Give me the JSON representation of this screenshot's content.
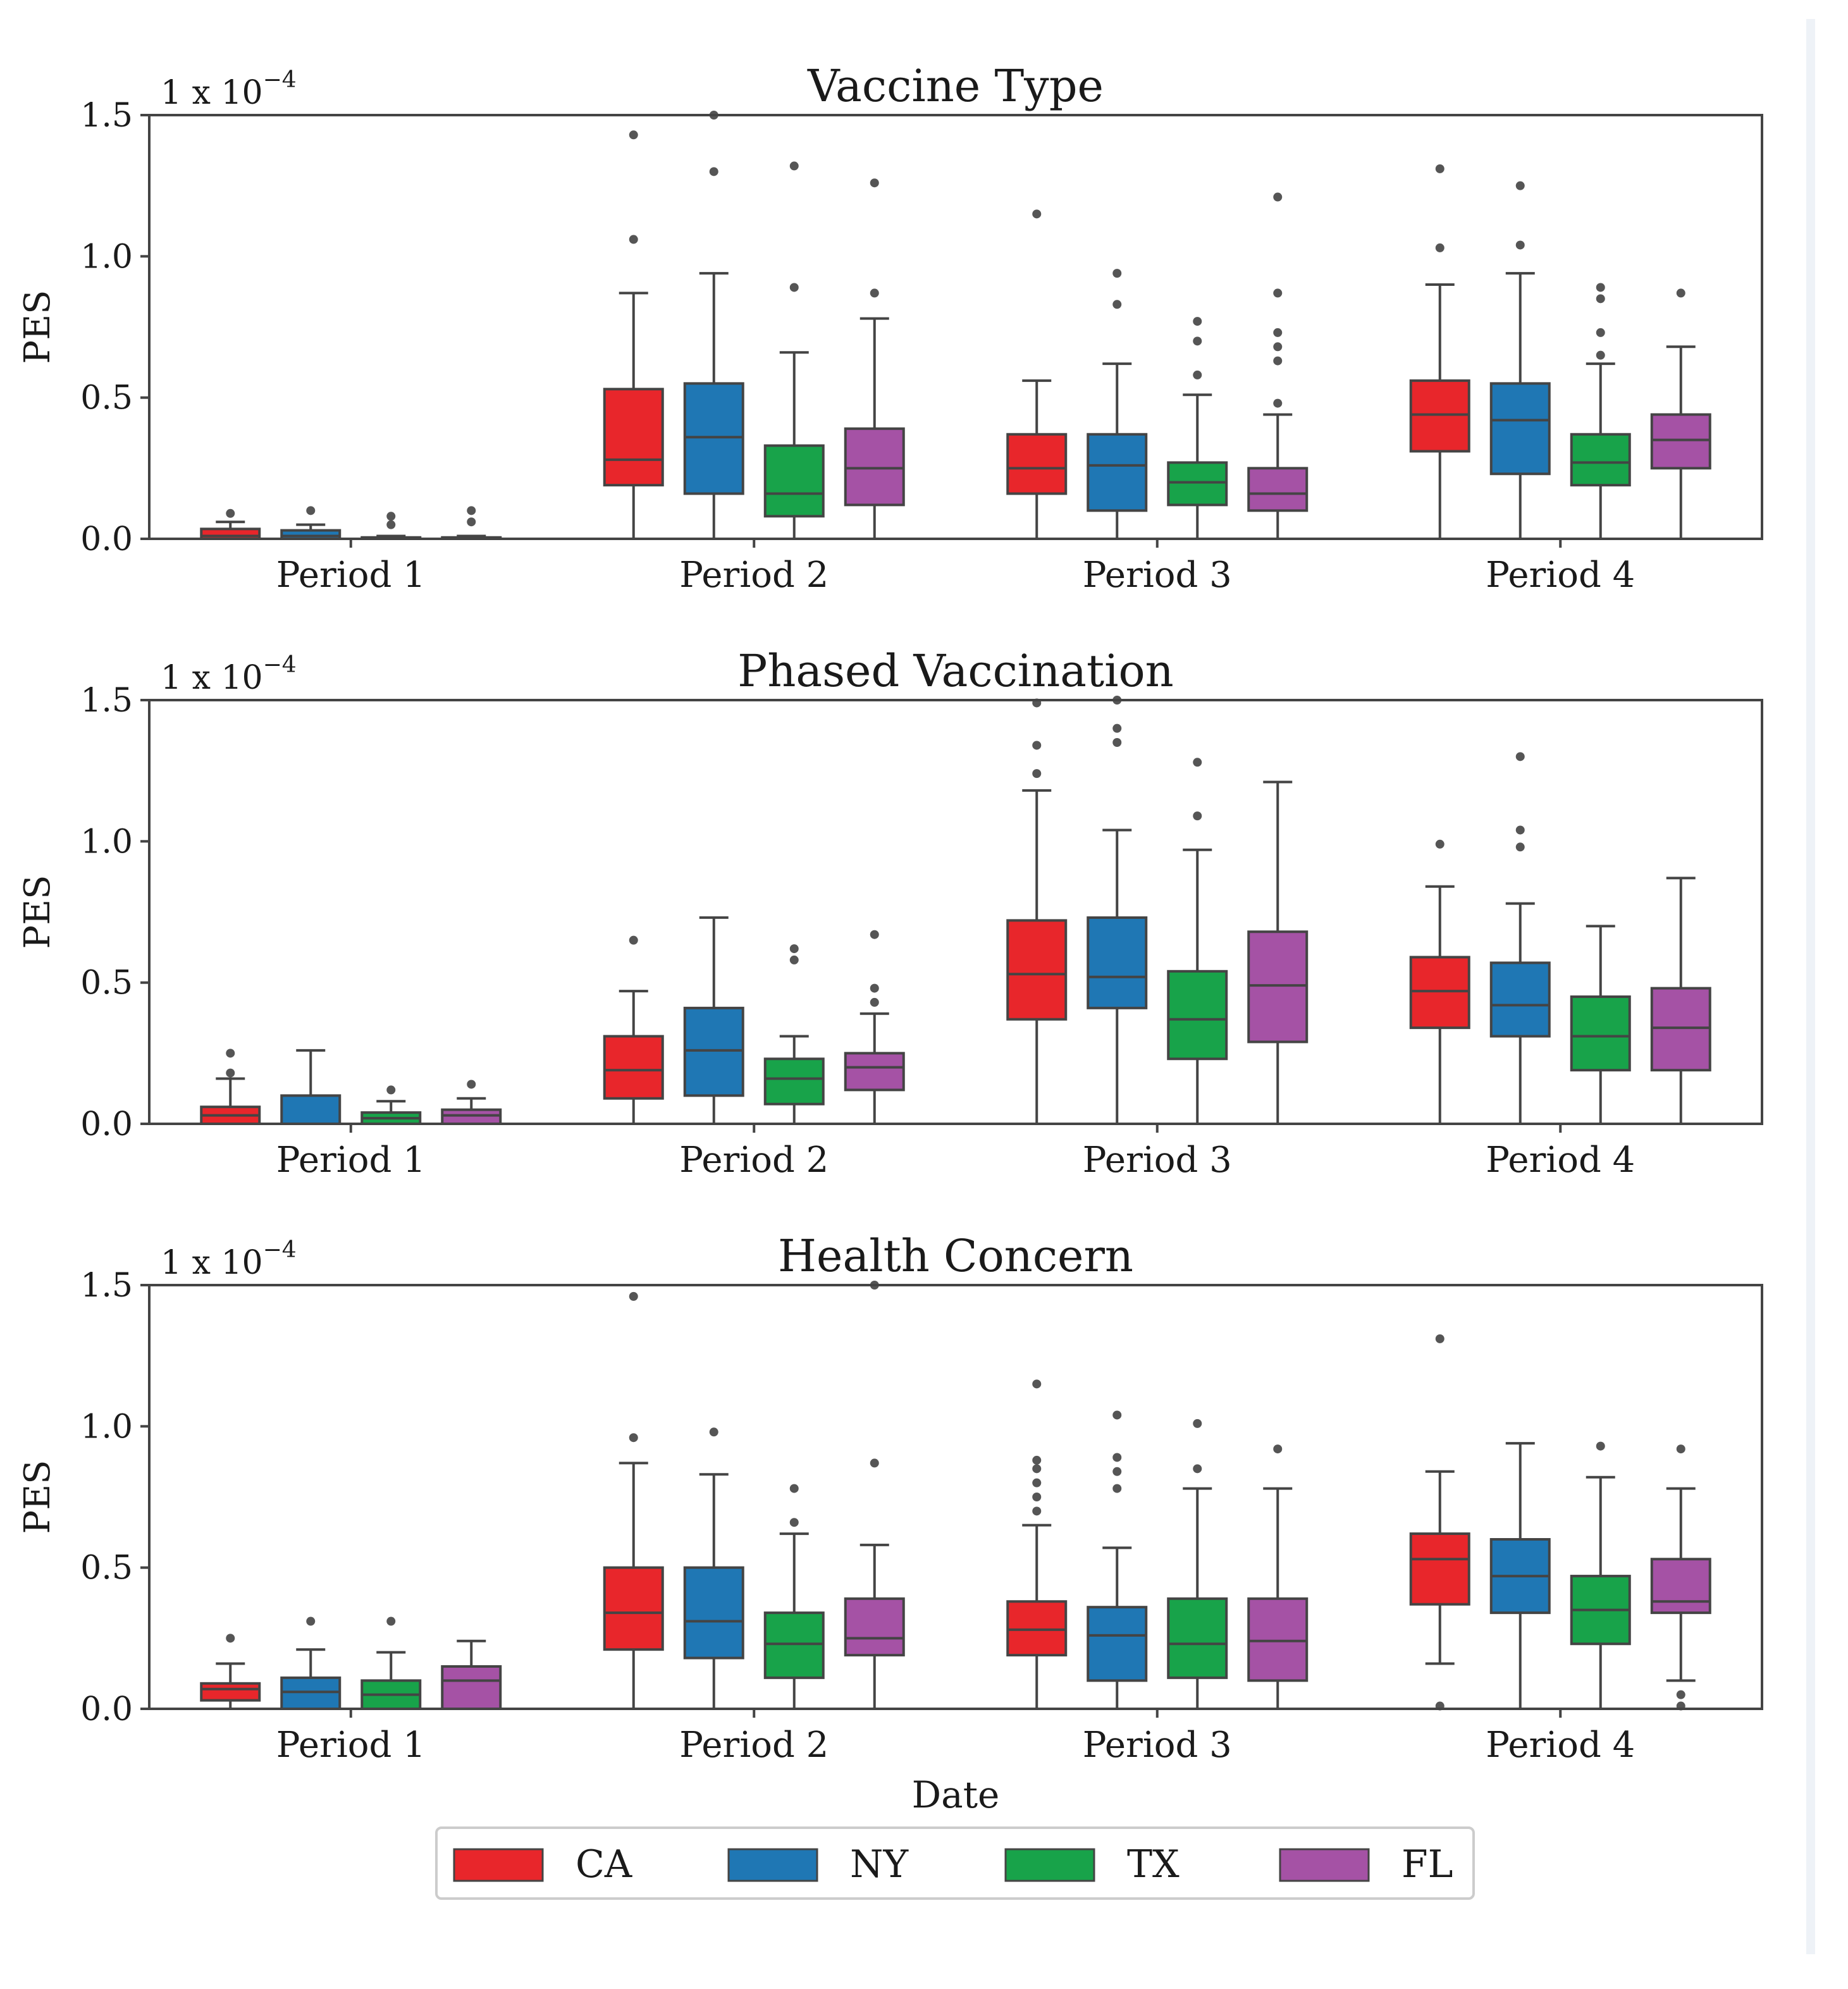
{
  "figure": {
    "xlabel": "Date",
    "legend_position": "bottom-center",
    "colors": {
      "CA": "#e8262b",
      "NY": "#1f77b4",
      "TX": "#18a34a",
      "FL": "#a552a5"
    }
  },
  "chart_data": [
    {
      "type": "box",
      "title": "Vaccine Type",
      "ylabel": "PES",
      "multiplier": "1 x 10",
      "multiplier_exp": "−4",
      "ylim": [
        0,
        1.5
      ],
      "yticks": [
        "0.0",
        "0.5",
        "1.0",
        "1.5"
      ],
      "categories": [
        "Period 1",
        "Period 2",
        "Period 3",
        "Period 4"
      ],
      "series": [
        {
          "name": "CA",
          "boxes": [
            {
              "q1": 0.0,
              "median": 0.01,
              "q3": 0.035,
              "whislo": 0.0,
              "whishi": 0.06,
              "fliers": [
                0.09
              ]
            },
            {
              "q1": 0.19,
              "median": 0.28,
              "q3": 0.53,
              "whislo": 0.0,
              "whishi": 0.87,
              "fliers": [
                1.06,
                1.43
              ]
            },
            {
              "q1": 0.16,
              "median": 0.25,
              "q3": 0.37,
              "whislo": 0.0,
              "whishi": 0.56,
              "fliers": [
                1.15
              ]
            },
            {
              "q1": 0.31,
              "median": 0.44,
              "q3": 0.56,
              "whislo": 0.0,
              "whishi": 0.9,
              "fliers": [
                1.03,
                1.31
              ]
            }
          ]
        },
        {
          "name": "NY",
          "boxes": [
            {
              "q1": 0.0,
              "median": 0.01,
              "q3": 0.03,
              "whislo": 0.0,
              "whishi": 0.05,
              "fliers": [
                0.1
              ]
            },
            {
              "q1": 0.16,
              "median": 0.36,
              "q3": 0.55,
              "whislo": 0.0,
              "whishi": 0.94,
              "fliers": [
                1.3,
                1.5
              ]
            },
            {
              "q1": 0.1,
              "median": 0.26,
              "q3": 0.37,
              "whislo": 0.0,
              "whishi": 0.62,
              "fliers": [
                0.83,
                0.94
              ]
            },
            {
              "q1": 0.23,
              "median": 0.42,
              "q3": 0.55,
              "whislo": 0.0,
              "whishi": 0.94,
              "fliers": [
                1.04,
                1.25
              ]
            }
          ]
        },
        {
          "name": "TX",
          "boxes": [
            {
              "q1": 0.0,
              "median": 0.0,
              "q3": 0.005,
              "whislo": 0.0,
              "whishi": 0.01,
              "fliers": [
                0.05,
                0.08
              ]
            },
            {
              "q1": 0.08,
              "median": 0.16,
              "q3": 0.33,
              "whislo": 0.0,
              "whishi": 0.66,
              "fliers": [
                0.89,
                1.32
              ]
            },
            {
              "q1": 0.12,
              "median": 0.2,
              "q3": 0.27,
              "whislo": 0.0,
              "whishi": 0.51,
              "fliers": [
                0.58,
                0.7,
                0.77
              ]
            },
            {
              "q1": 0.19,
              "median": 0.27,
              "q3": 0.37,
              "whislo": 0.0,
              "whishi": 0.62,
              "fliers": [
                0.65,
                0.73,
                0.85,
                0.89
              ]
            }
          ]
        },
        {
          "name": "FL",
          "boxes": [
            {
              "q1": 0.0,
              "median": 0.0,
              "q3": 0.005,
              "whislo": 0.0,
              "whishi": 0.01,
              "fliers": [
                0.06,
                0.1
              ]
            },
            {
              "q1": 0.12,
              "median": 0.25,
              "q3": 0.39,
              "whislo": 0.0,
              "whishi": 0.78,
              "fliers": [
                0.87,
                1.26
              ]
            },
            {
              "q1": 0.1,
              "median": 0.16,
              "q3": 0.25,
              "whislo": 0.0,
              "whishi": 0.44,
              "fliers": [
                0.48,
                0.63,
                0.68,
                0.73,
                0.87,
                1.21
              ]
            },
            {
              "q1": 0.25,
              "median": 0.35,
              "q3": 0.44,
              "whislo": 0.0,
              "whishi": 0.68,
              "fliers": [
                0.87
              ]
            }
          ]
        }
      ]
    },
    {
      "type": "box",
      "title": "Phased Vaccination",
      "ylabel": "PES",
      "multiplier": "1 x 10",
      "multiplier_exp": "−4",
      "ylim": [
        0,
        1.5
      ],
      "yticks": [
        "0.0",
        "0.5",
        "1.0",
        "1.5"
      ],
      "categories": [
        "Period 1",
        "Period 2",
        "Period 3",
        "Period 4"
      ],
      "series": [
        {
          "name": "CA",
          "boxes": [
            {
              "q1": 0.0,
              "median": 0.03,
              "q3": 0.06,
              "whislo": 0.0,
              "whishi": 0.16,
              "fliers": [
                0.18,
                0.25
              ]
            },
            {
              "q1": 0.09,
              "median": 0.19,
              "q3": 0.31,
              "whislo": 0.0,
              "whishi": 0.47,
              "fliers": [
                0.65
              ]
            },
            {
              "q1": 0.37,
              "median": 0.53,
              "q3": 0.72,
              "whislo": 0.0,
              "whishi": 1.18,
              "fliers": [
                1.24,
                1.34,
                1.49
              ]
            },
            {
              "q1": 0.34,
              "median": 0.47,
              "q3": 0.59,
              "whislo": 0.0,
              "whishi": 0.84,
              "fliers": [
                0.99
              ]
            }
          ]
        },
        {
          "name": "NY",
          "boxes": [
            {
              "q1": 0.0,
              "median": 0.0,
              "q3": 0.1,
              "whislo": 0.0,
              "whishi": 0.26,
              "fliers": []
            },
            {
              "q1": 0.1,
              "median": 0.26,
              "q3": 0.41,
              "whislo": 0.0,
              "whishi": 0.73,
              "fliers": []
            },
            {
              "q1": 0.41,
              "median": 0.52,
              "q3": 0.73,
              "whislo": 0.0,
              "whishi": 1.04,
              "fliers": [
                1.35,
                1.4,
                1.5
              ]
            },
            {
              "q1": 0.31,
              "median": 0.42,
              "q3": 0.57,
              "whislo": 0.0,
              "whishi": 0.78,
              "fliers": [
                0.98,
                1.04,
                1.3
              ]
            }
          ]
        },
        {
          "name": "TX",
          "boxes": [
            {
              "q1": 0.0,
              "median": 0.02,
              "q3": 0.04,
              "whislo": 0.0,
              "whishi": 0.08,
              "fliers": [
                0.12
              ]
            },
            {
              "q1": 0.07,
              "median": 0.16,
              "q3": 0.23,
              "whislo": 0.0,
              "whishi": 0.31,
              "fliers": [
                0.58,
                0.62
              ]
            },
            {
              "q1": 0.23,
              "median": 0.37,
              "q3": 0.54,
              "whislo": 0.0,
              "whishi": 0.97,
              "fliers": [
                1.09,
                1.28
              ]
            },
            {
              "q1": 0.19,
              "median": 0.31,
              "q3": 0.45,
              "whislo": 0.0,
              "whishi": 0.7,
              "fliers": []
            }
          ]
        },
        {
          "name": "FL",
          "boxes": [
            {
              "q1": 0.0,
              "median": 0.03,
              "q3": 0.05,
              "whislo": 0.0,
              "whishi": 0.09,
              "fliers": [
                0.14
              ]
            },
            {
              "q1": 0.12,
              "median": 0.2,
              "q3": 0.25,
              "whislo": 0.0,
              "whishi": 0.39,
              "fliers": [
                0.43,
                0.48,
                0.67
              ]
            },
            {
              "q1": 0.29,
              "median": 0.49,
              "q3": 0.68,
              "whislo": 0.0,
              "whishi": 1.21,
              "fliers": []
            },
            {
              "q1": 0.19,
              "median": 0.34,
              "q3": 0.48,
              "whislo": 0.0,
              "whishi": 0.87,
              "fliers": []
            }
          ]
        }
      ]
    },
    {
      "type": "box",
      "title": "Health Concern",
      "ylabel": "PES",
      "multiplier": "1 x 10",
      "multiplier_exp": "−4",
      "ylim": [
        0,
        1.5
      ],
      "yticks": [
        "0.0",
        "0.5",
        "1.0",
        "1.5"
      ],
      "categories": [
        "Period 1",
        "Period 2",
        "Period 3",
        "Period 4"
      ],
      "series": [
        {
          "name": "CA",
          "boxes": [
            {
              "q1": 0.03,
              "median": 0.07,
              "q3": 0.09,
              "whislo": 0.0,
              "whishi": 0.16,
              "fliers": [
                0.25
              ]
            },
            {
              "q1": 0.21,
              "median": 0.34,
              "q3": 0.5,
              "whislo": 0.0,
              "whishi": 0.87,
              "fliers": [
                0.96,
                1.46
              ]
            },
            {
              "q1": 0.19,
              "median": 0.28,
              "q3": 0.38,
              "whislo": 0.0,
              "whishi": 0.65,
              "fliers": [
                0.7,
                0.75,
                0.8,
                0.85,
                0.88,
                1.15
              ]
            },
            {
              "q1": 0.37,
              "median": 0.53,
              "q3": 0.62,
              "whislo": 0.16,
              "whishi": 0.84,
              "fliers": [
                0.01,
                1.31
              ]
            }
          ]
        },
        {
          "name": "NY",
          "boxes": [
            {
              "q1": 0.0,
              "median": 0.06,
              "q3": 0.11,
              "whislo": 0.0,
              "whishi": 0.21,
              "fliers": [
                0.31
              ]
            },
            {
              "q1": 0.18,
              "median": 0.31,
              "q3": 0.5,
              "whislo": 0.0,
              "whishi": 0.83,
              "fliers": [
                0.98
              ]
            },
            {
              "q1": 0.1,
              "median": 0.26,
              "q3": 0.36,
              "whislo": 0.0,
              "whishi": 0.57,
              "fliers": [
                0.78,
                0.84,
                0.89,
                1.04
              ]
            },
            {
              "q1": 0.34,
              "median": 0.47,
              "q3": 0.6,
              "whislo": 0.0,
              "whishi": 0.94,
              "fliers": []
            }
          ]
        },
        {
          "name": "TX",
          "boxes": [
            {
              "q1": 0.0,
              "median": 0.05,
              "q3": 0.1,
              "whislo": 0.0,
              "whishi": 0.2,
              "fliers": [
                0.31
              ]
            },
            {
              "q1": 0.11,
              "median": 0.23,
              "q3": 0.34,
              "whislo": 0.0,
              "whishi": 0.62,
              "fliers": [
                0.66,
                0.78
              ]
            },
            {
              "q1": 0.11,
              "median": 0.23,
              "q3": 0.39,
              "whislo": 0.0,
              "whishi": 0.78,
              "fliers": [
                0.85,
                1.01
              ]
            },
            {
              "q1": 0.23,
              "median": 0.35,
              "q3": 0.47,
              "whislo": 0.0,
              "whishi": 0.82,
              "fliers": [
                0.93
              ]
            }
          ]
        },
        {
          "name": "FL",
          "boxes": [
            {
              "q1": 0.0,
              "median": 0.1,
              "q3": 0.15,
              "whislo": 0.0,
              "whishi": 0.24,
              "fliers": []
            },
            {
              "q1": 0.19,
              "median": 0.25,
              "q3": 0.39,
              "whislo": 0.0,
              "whishi": 0.58,
              "fliers": [
                0.87,
                1.5
              ]
            },
            {
              "q1": 0.1,
              "median": 0.24,
              "q3": 0.39,
              "whislo": 0.0,
              "whishi": 0.78,
              "fliers": [
                0.92
              ]
            },
            {
              "q1": 0.34,
              "median": 0.38,
              "q3": 0.53,
              "whislo": 0.1,
              "whishi": 0.78,
              "fliers": [
                0.01,
                0.05,
                0.92
              ]
            }
          ]
        }
      ]
    }
  ]
}
